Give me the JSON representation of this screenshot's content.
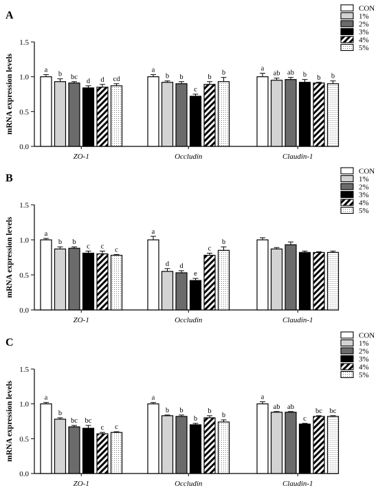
{
  "legend": {
    "entries": [
      "CON",
      "1%",
      "2%",
      "3%",
      "4%",
      "5%"
    ],
    "colors": [
      "#ffffff",
      "#d3d3d3",
      "#6b6b6b",
      "#000000",
      "hatch",
      "dots"
    ]
  },
  "chart_data": [
    {
      "type": "bar",
      "panel_label": "A",
      "ylabel": "mRNA expression levels",
      "ylim": [
        0,
        1.5
      ],
      "yticks": [
        "0.0",
        "0.5",
        "1.0",
        "1.5"
      ],
      "categories": [
        "ZO-1",
        "Occludin",
        "Claudin-1"
      ],
      "series": [
        {
          "name": "CON",
          "values": [
            1.0,
            1.0,
            1.0
          ],
          "errors": [
            0.03,
            0.03,
            0.05
          ],
          "labels": [
            "a",
            "a",
            "a"
          ]
        },
        {
          "name": "1%",
          "values": [
            0.93,
            0.92,
            0.95
          ],
          "errors": [
            0.04,
            0.02,
            0.03
          ],
          "labels": [
            "b",
            "b",
            "ab"
          ]
        },
        {
          "name": "2%",
          "values": [
            0.91,
            0.9,
            0.96
          ],
          "errors": [
            0.02,
            0.03,
            0.03
          ],
          "labels": [
            "bc",
            "b",
            "ab"
          ]
        },
        {
          "name": "3%",
          "values": [
            0.84,
            0.72,
            0.92
          ],
          "errors": [
            0.03,
            0.03,
            0.04
          ],
          "labels": [
            "d",
            "c",
            "b"
          ]
        },
        {
          "name": "4%",
          "values": [
            0.85,
            0.89,
            0.91
          ],
          "errors": [
            0.04,
            0.04,
            0.01
          ],
          "labels": [
            "d",
            "b",
            "b"
          ]
        },
        {
          "name": "5%",
          "values": [
            0.87,
            0.93,
            0.9
          ],
          "errors": [
            0.03,
            0.06,
            0.04
          ],
          "labels": [
            "cd",
            "b",
            "b"
          ]
        }
      ]
    },
    {
      "type": "bar",
      "panel_label": "B",
      "ylabel": "mRNA expression levels",
      "ylim": [
        0,
        1.5
      ],
      "yticks": [
        "0.0",
        "0.5",
        "1.0",
        "1.5"
      ],
      "categories": [
        "ZO-1",
        "Occludin",
        "Claudin-1"
      ],
      "series": [
        {
          "name": "CON",
          "values": [
            1.0,
            1.0,
            1.0
          ],
          "errors": [
            0.02,
            0.05,
            0.03
          ],
          "labels": [
            "a",
            "a",
            ""
          ]
        },
        {
          "name": "1%",
          "values": [
            0.87,
            0.55,
            0.87
          ],
          "errors": [
            0.03,
            0.04,
            0.02
          ],
          "labels": [
            "b",
            "d",
            ""
          ]
        },
        {
          "name": "2%",
          "values": [
            0.88,
            0.53,
            0.93
          ],
          "errors": [
            0.02,
            0.03,
            0.04
          ],
          "labels": [
            "b",
            "d",
            ""
          ]
        },
        {
          "name": "3%",
          "values": [
            0.81,
            0.42,
            0.82
          ],
          "errors": [
            0.03,
            0.03,
            0.02
          ],
          "labels": [
            "c",
            "e",
            ""
          ]
        },
        {
          "name": "4%",
          "values": [
            0.8,
            0.78,
            0.82
          ],
          "errors": [
            0.04,
            0.03,
            0.01
          ],
          "labels": [
            "c",
            "c",
            ""
          ]
        },
        {
          "name": "5%",
          "values": [
            0.78,
            0.85,
            0.82
          ],
          "errors": [
            0.01,
            0.05,
            0.02
          ],
          "labels": [
            "c",
            "b",
            ""
          ]
        }
      ]
    },
    {
      "type": "bar",
      "panel_label": "C",
      "ylabel": "mRNA expression levels",
      "ylim": [
        0,
        1.5
      ],
      "yticks": [
        "0.0",
        "0.5",
        "1.0",
        "1.5"
      ],
      "categories": [
        "ZO-1",
        "Occludin",
        "Claudin-1"
      ],
      "series": [
        {
          "name": "CON",
          "values": [
            1.0,
            1.0,
            1.0
          ],
          "errors": [
            0.02,
            0.02,
            0.03
          ],
          "labels": [
            "a",
            "a",
            "a"
          ]
        },
        {
          "name": "1%",
          "values": [
            0.78,
            0.83,
            0.88
          ],
          "errors": [
            0.02,
            0.01,
            0.01
          ],
          "labels": [
            "b",
            "b",
            "ab"
          ]
        },
        {
          "name": "2%",
          "values": [
            0.67,
            0.82,
            0.88
          ],
          "errors": [
            0.02,
            0.02,
            0.01
          ],
          "labels": [
            "bc",
            "b",
            "ab"
          ]
        },
        {
          "name": "3%",
          "values": [
            0.65,
            0.7,
            0.71
          ],
          "errors": [
            0.04,
            0.02,
            0.01
          ],
          "labels": [
            "bc",
            "b",
            "c"
          ]
        },
        {
          "name": "4%",
          "values": [
            0.57,
            0.8,
            0.82
          ],
          "errors": [
            0.02,
            0.03,
            0.01
          ],
          "labels": [
            "c",
            "b",
            "bc"
          ]
        },
        {
          "name": "5%",
          "values": [
            0.59,
            0.74,
            0.82
          ],
          "errors": [
            0.01,
            0.03,
            0.01
          ],
          "labels": [
            "c",
            "b",
            "bc"
          ]
        }
      ]
    }
  ]
}
